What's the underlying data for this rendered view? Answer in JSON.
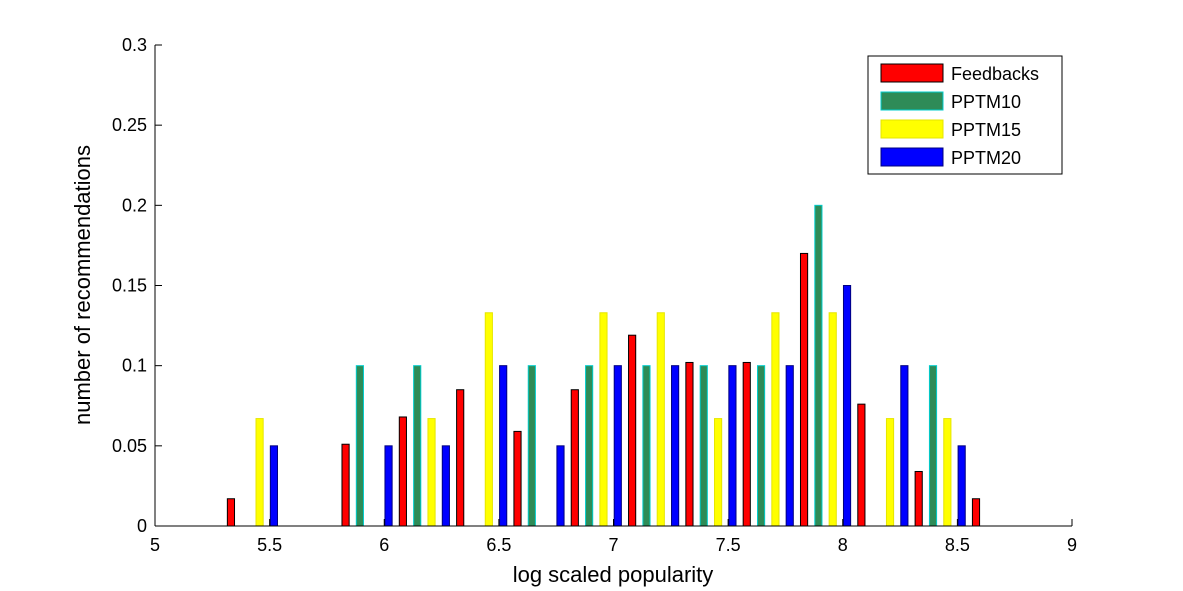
{
  "chart_data": {
    "type": "bar",
    "xlabel": "log scaled popularity",
    "ylabel": "number of recommendations",
    "xlim": [
      5,
      9
    ],
    "ylim": [
      0,
      0.3
    ],
    "xticks": [
      "5",
      "5.5",
      "6",
      "6.5",
      "7",
      "7.5",
      "8",
      "8.5",
      "9"
    ],
    "yticks": [
      "0",
      "0.05",
      "0.1",
      "0.15",
      "0.2",
      "0.25",
      "0.3"
    ],
    "grid": false,
    "legend_position": "top-right",
    "bin_centers": [
      5.175,
      5.425,
      5.675,
      5.925,
      6.175,
      6.425,
      6.675,
      6.925,
      7.175,
      7.425,
      7.675,
      7.925,
      8.175,
      8.425,
      8.675,
      8.925
    ],
    "series": [
      {
        "name": "Feedbacks",
        "fill": "#ff0000",
        "stroke": "#000000",
        "values": [
          0,
          0.017,
          0,
          0.051,
          0.068,
          0.085,
          0.059,
          0.085,
          0.119,
          0.102,
          0.102,
          0.17,
          0.076,
          0.034,
          0.017,
          0
        ]
      },
      {
        "name": "PPTM10",
        "fill": "#2e8b57",
        "stroke": "#00cccc",
        "values": [
          0,
          0,
          0,
          0.1,
          0.1,
          0,
          0.1,
          0.1,
          0.1,
          0.1,
          0.1,
          0.2,
          0,
          0.1,
          0,
          0
        ]
      },
      {
        "name": "PPTM15",
        "fill": "#ffff00",
        "stroke": "#e6e600",
        "values": [
          0,
          0.067,
          0,
          0,
          0.067,
          0.133,
          0,
          0.133,
          0.133,
          0.067,
          0.133,
          0.133,
          0.067,
          0.067,
          0,
          0
        ]
      },
      {
        "name": "PPTM20",
        "fill": "#0000ff",
        "stroke": "#000080",
        "values": [
          0,
          0.05,
          0,
          0.05,
          0.05,
          0.1,
          0.05,
          0.1,
          0.1,
          0.1,
          0.1,
          0.15,
          0.1,
          0.05,
          0,
          0
        ]
      }
    ]
  }
}
